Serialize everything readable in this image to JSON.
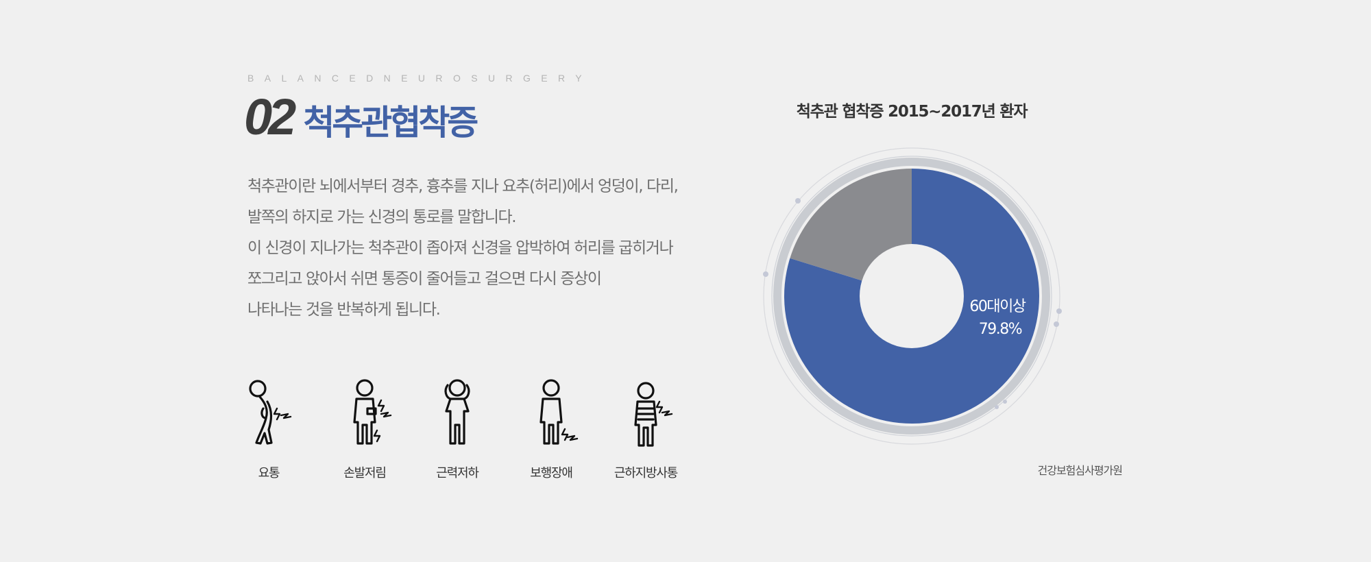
{
  "eyebrow": "BALANCEDNEUROSURGERY",
  "section": {
    "number": "02",
    "title": "척추관협착증"
  },
  "description": [
    "척추관이란 뇌에서부터 경추, 흉추를 지나 요추(허리)에서 엉덩이, 다리,",
    "발쪽의 하지로 가는 신경의 통로를 말합니다.",
    "이 신경이 지나가는 척추관이 좁아져 신경을 압박하여 허리를 굽히거나",
    "쪼그리고 앉아서 쉬면 통증이 줄어들고 걸으면 다시 증상이",
    "나타나는 것을 반복하게 됩니다."
  ],
  "symptoms": [
    {
      "label": "요통",
      "icon": "back-pain-figure-icon"
    },
    {
      "label": "손발저림",
      "icon": "numbness-figure-icon"
    },
    {
      "label": "근력저하",
      "icon": "weakness-figure-icon"
    },
    {
      "label": "보행장애",
      "icon": "gait-disorder-figure-icon"
    },
    {
      "label": "근하지방사통",
      "icon": "radiating-pain-figure-icon"
    }
  ],
  "source": "건강보험심사평가원",
  "colors": {
    "accent": "#4262a6",
    "other": "#8a8b8f",
    "ring": "#c9ccd1"
  },
  "chart_data": {
    "type": "pie",
    "title": "척추관 협착증 2015~2017년 환자",
    "slices": [
      {
        "label": "60대이상",
        "value": 79.8,
        "display": "79.8%",
        "color": "#4262a6",
        "labeled": true
      },
      {
        "label": "",
        "value": 20.2,
        "display": "",
        "color": "#8a8b8f",
        "labeled": false
      }
    ],
    "donut": true
  }
}
